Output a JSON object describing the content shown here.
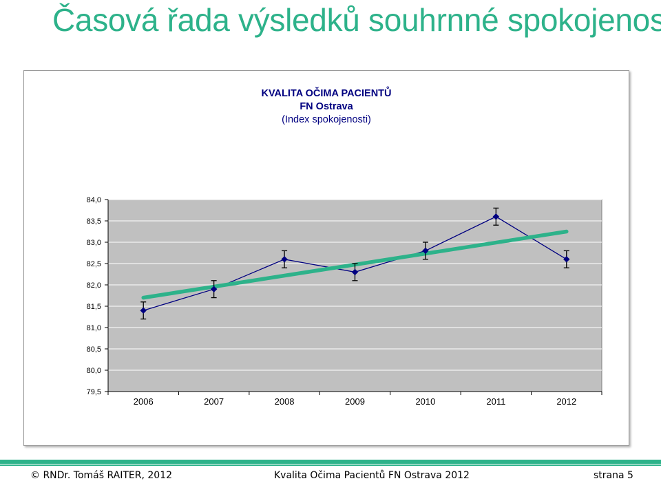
{
  "slide": {
    "title": "Časová řada výsledků souhrnné spokojenosti"
  },
  "chart_data": {
    "type": "line",
    "title_lines": [
      "KVALITA OČIMA PACIENTŮ",
      "FN Ostrava",
      "(Index spokojenosti)"
    ],
    "categories": [
      "2006",
      "2007",
      "2008",
      "2009",
      "2010",
      "2011",
      "2012"
    ],
    "series": [
      {
        "values": [
          81.4,
          81.9,
          82.6,
          82.3,
          82.8,
          83.6,
          82.6
        ],
        "error_low": [
          81.2,
          81.7,
          82.4,
          82.1,
          82.6,
          83.4,
          82.4
        ],
        "error_high": [
          81.6,
          82.1,
          82.8,
          82.5,
          83.0,
          83.8,
          82.8
        ],
        "color": "#000080"
      }
    ],
    "trendline": {
      "start": 81.7,
      "end": 83.25,
      "color": "#2db28a"
    },
    "ylim": [
      79.5,
      84.0
    ],
    "yticks": [
      "79,5",
      "80,0",
      "80,5",
      "81,0",
      "81,5",
      "82,0",
      "82,5",
      "83,0",
      "83,5",
      "84,0"
    ],
    "grid": true,
    "plot_background": "#c0c0c0"
  },
  "footer": {
    "author": "© RNDr. Tomáš RAITER, 2012",
    "center": "Kvalita Očima Pacientů FN Ostrava 2012",
    "page": "strana 5"
  }
}
